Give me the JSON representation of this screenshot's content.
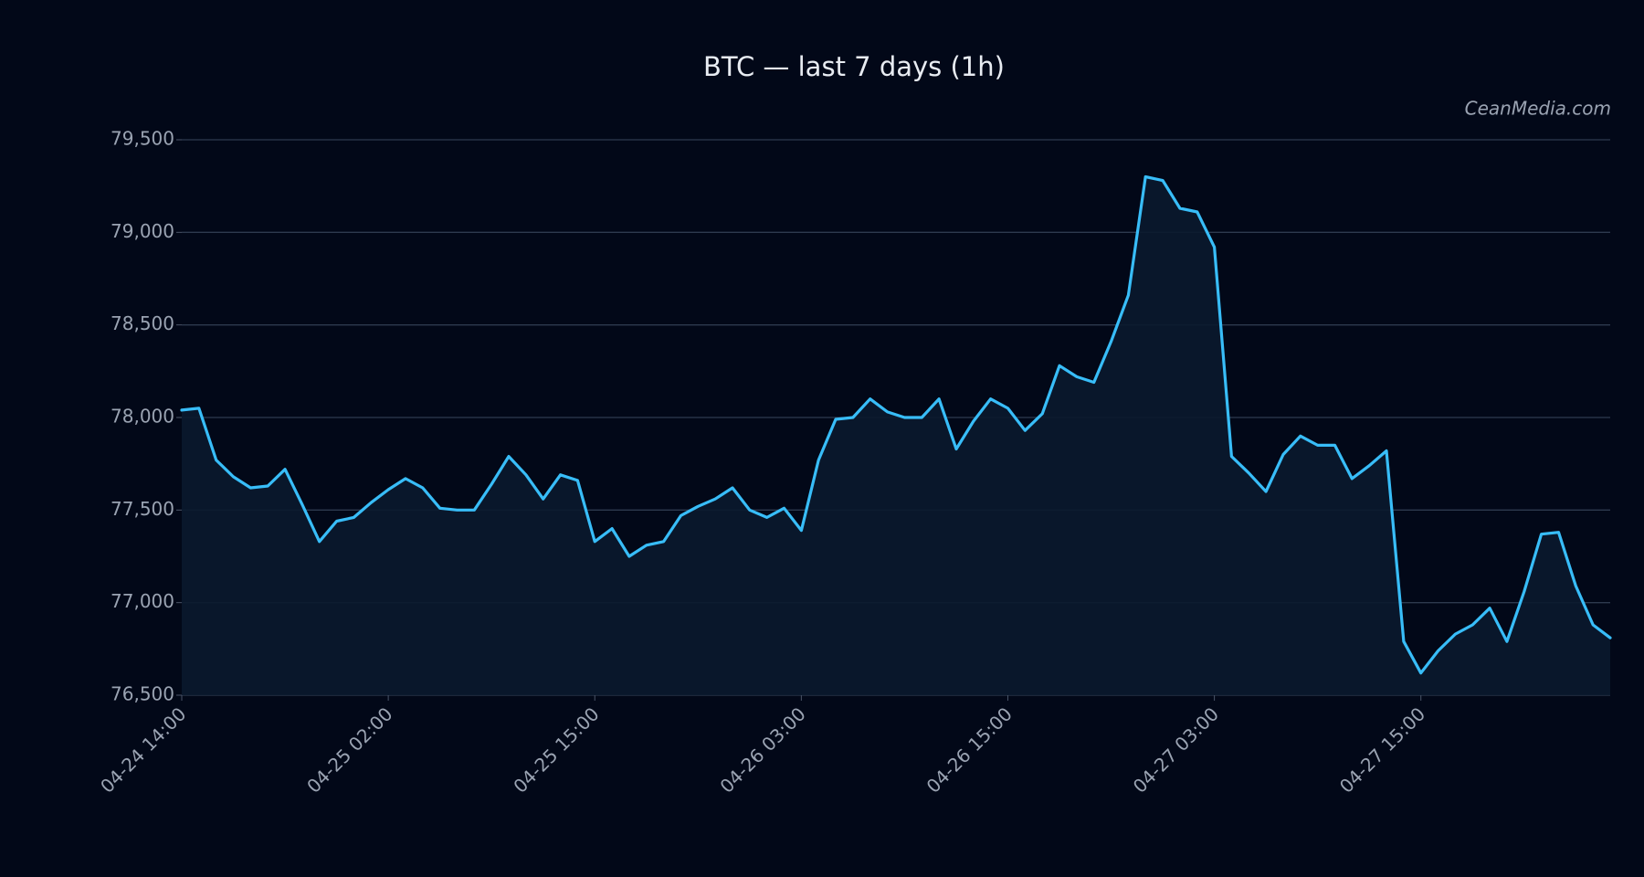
{
  "chart_data": {
    "type": "line",
    "title": "BTC — last 7 days (1h)",
    "watermark": "CeanMedia.com",
    "categories": [
      "04-24 14:00",
      null,
      null,
      null,
      null,
      null,
      null,
      null,
      null,
      null,
      null,
      null,
      "04-25 02:00",
      null,
      null,
      null,
      null,
      null,
      null,
      null,
      null,
      null,
      null,
      null,
      "04-25 15:00",
      null,
      null,
      null,
      null,
      null,
      null,
      null,
      null,
      null,
      null,
      null,
      "04-26 03:00",
      null,
      null,
      null,
      null,
      null,
      null,
      null,
      null,
      null,
      null,
      null,
      "04-26 15:00",
      null,
      null,
      null,
      null,
      null,
      null,
      null,
      null,
      null,
      null,
      null,
      "04-27 03:00",
      null,
      null,
      null,
      null,
      null,
      null,
      null,
      null,
      null,
      null,
      null,
      "04-27 15:00",
      null,
      null,
      null,
      null,
      null,
      null,
      null,
      null,
      null,
      null,
      null
    ],
    "values": [
      78040,
      78050,
      77770,
      77680,
      77620,
      77630,
      77720,
      77530,
      77330,
      77440,
      77460,
      77540,
      77610,
      77670,
      77620,
      77510,
      77500,
      77500,
      77640,
      77790,
      77690,
      77560,
      77690,
      77660,
      77330,
      77400,
      77250,
      77310,
      77330,
      77470,
      77520,
      77560,
      77620,
      77500,
      77460,
      77510,
      77390,
      77770,
      77990,
      78000,
      78100,
      78030,
      78000,
      78000,
      78100,
      77830,
      77980,
      78100,
      78050,
      77930,
      78020,
      78280,
      78220,
      78190,
      78410,
      78660,
      79300,
      79280,
      79130,
      79110,
      78920,
      77790,
      77700,
      77600,
      77800,
      77900,
      77850,
      77850,
      77670,
      77740,
      77820,
      76790,
      76620,
      76740,
      76830,
      76880,
      76970,
      76790,
      77060,
      77370,
      77380,
      77090,
      76880,
      76810
    ],
    "color": "#38bdf8",
    "ylim": [
      76500,
      79500
    ],
    "yticks": [
      {
        "value": 76500,
        "label": "76,500"
      },
      {
        "value": 77000,
        "label": "77,000"
      },
      {
        "value": 77500,
        "label": "77,500"
      },
      {
        "value": 78000,
        "label": "78,000"
      },
      {
        "value": 78500,
        "label": "78,500"
      },
      {
        "value": 79000,
        "label": "79,000"
      },
      {
        "value": 79500,
        "label": "79,500"
      }
    ],
    "grid": true
  }
}
